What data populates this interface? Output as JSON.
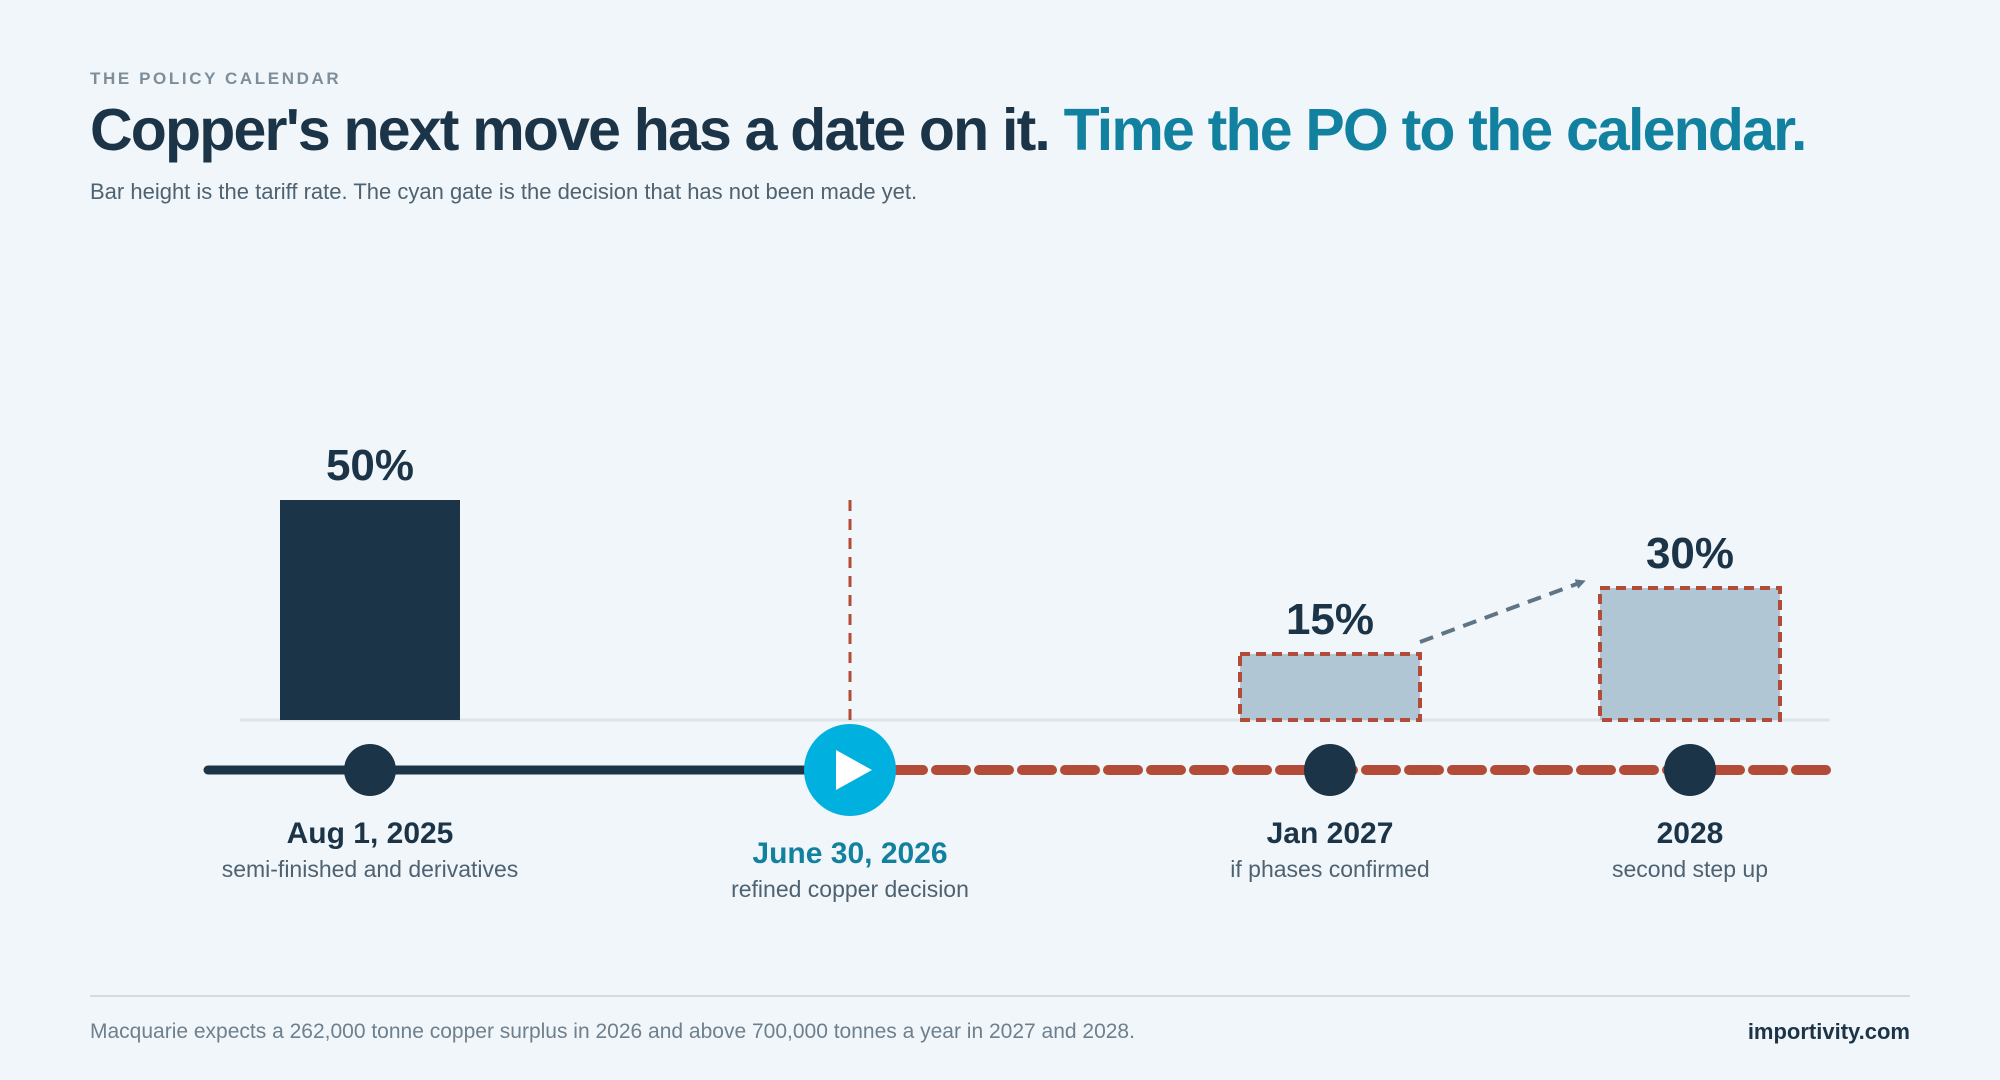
{
  "header": {
    "eyebrow": "THE POLICY CALENDAR",
    "title_main": "Copper's next move has a date on it.",
    "title_accent": "Time the PO to the calendar.",
    "subtitle": "Bar height is the tariff rate. The cyan gate is the decision that has not been made yet."
  },
  "chart_data": {
    "type": "bar",
    "categories": [
      "Aug 1, 2025",
      "June 30, 2026",
      "Jan 2027",
      "2028"
    ],
    "values": [
      50,
      null,
      15,
      30
    ],
    "value_labels": [
      "50%",
      "",
      "15%",
      "30%"
    ],
    "status": [
      "in-effect",
      "pending-decision",
      "proposed",
      "proposed"
    ],
    "sublabels": [
      "semi-finished and derivatives",
      "refined copper decision",
      "if phases confirmed",
      "second step up"
    ],
    "unit": "%",
    "ylim": [
      0,
      50
    ],
    "title": "",
    "xlabel": "",
    "ylabel": "",
    "colors": {
      "in_effect": "#1c3447",
      "proposed_fill": "#b0c6d4",
      "proposed_border": "#b24c38",
      "gate": "#00b0de",
      "gate_label": "#12819f",
      "arrow": "#5f7585"
    }
  },
  "footer": {
    "note": "Macquarie expects a 262,000 tonne copper surplus in 2026 and above 700,000 tonnes a year in 2027 and 2028.",
    "brand": "importivity.com"
  }
}
